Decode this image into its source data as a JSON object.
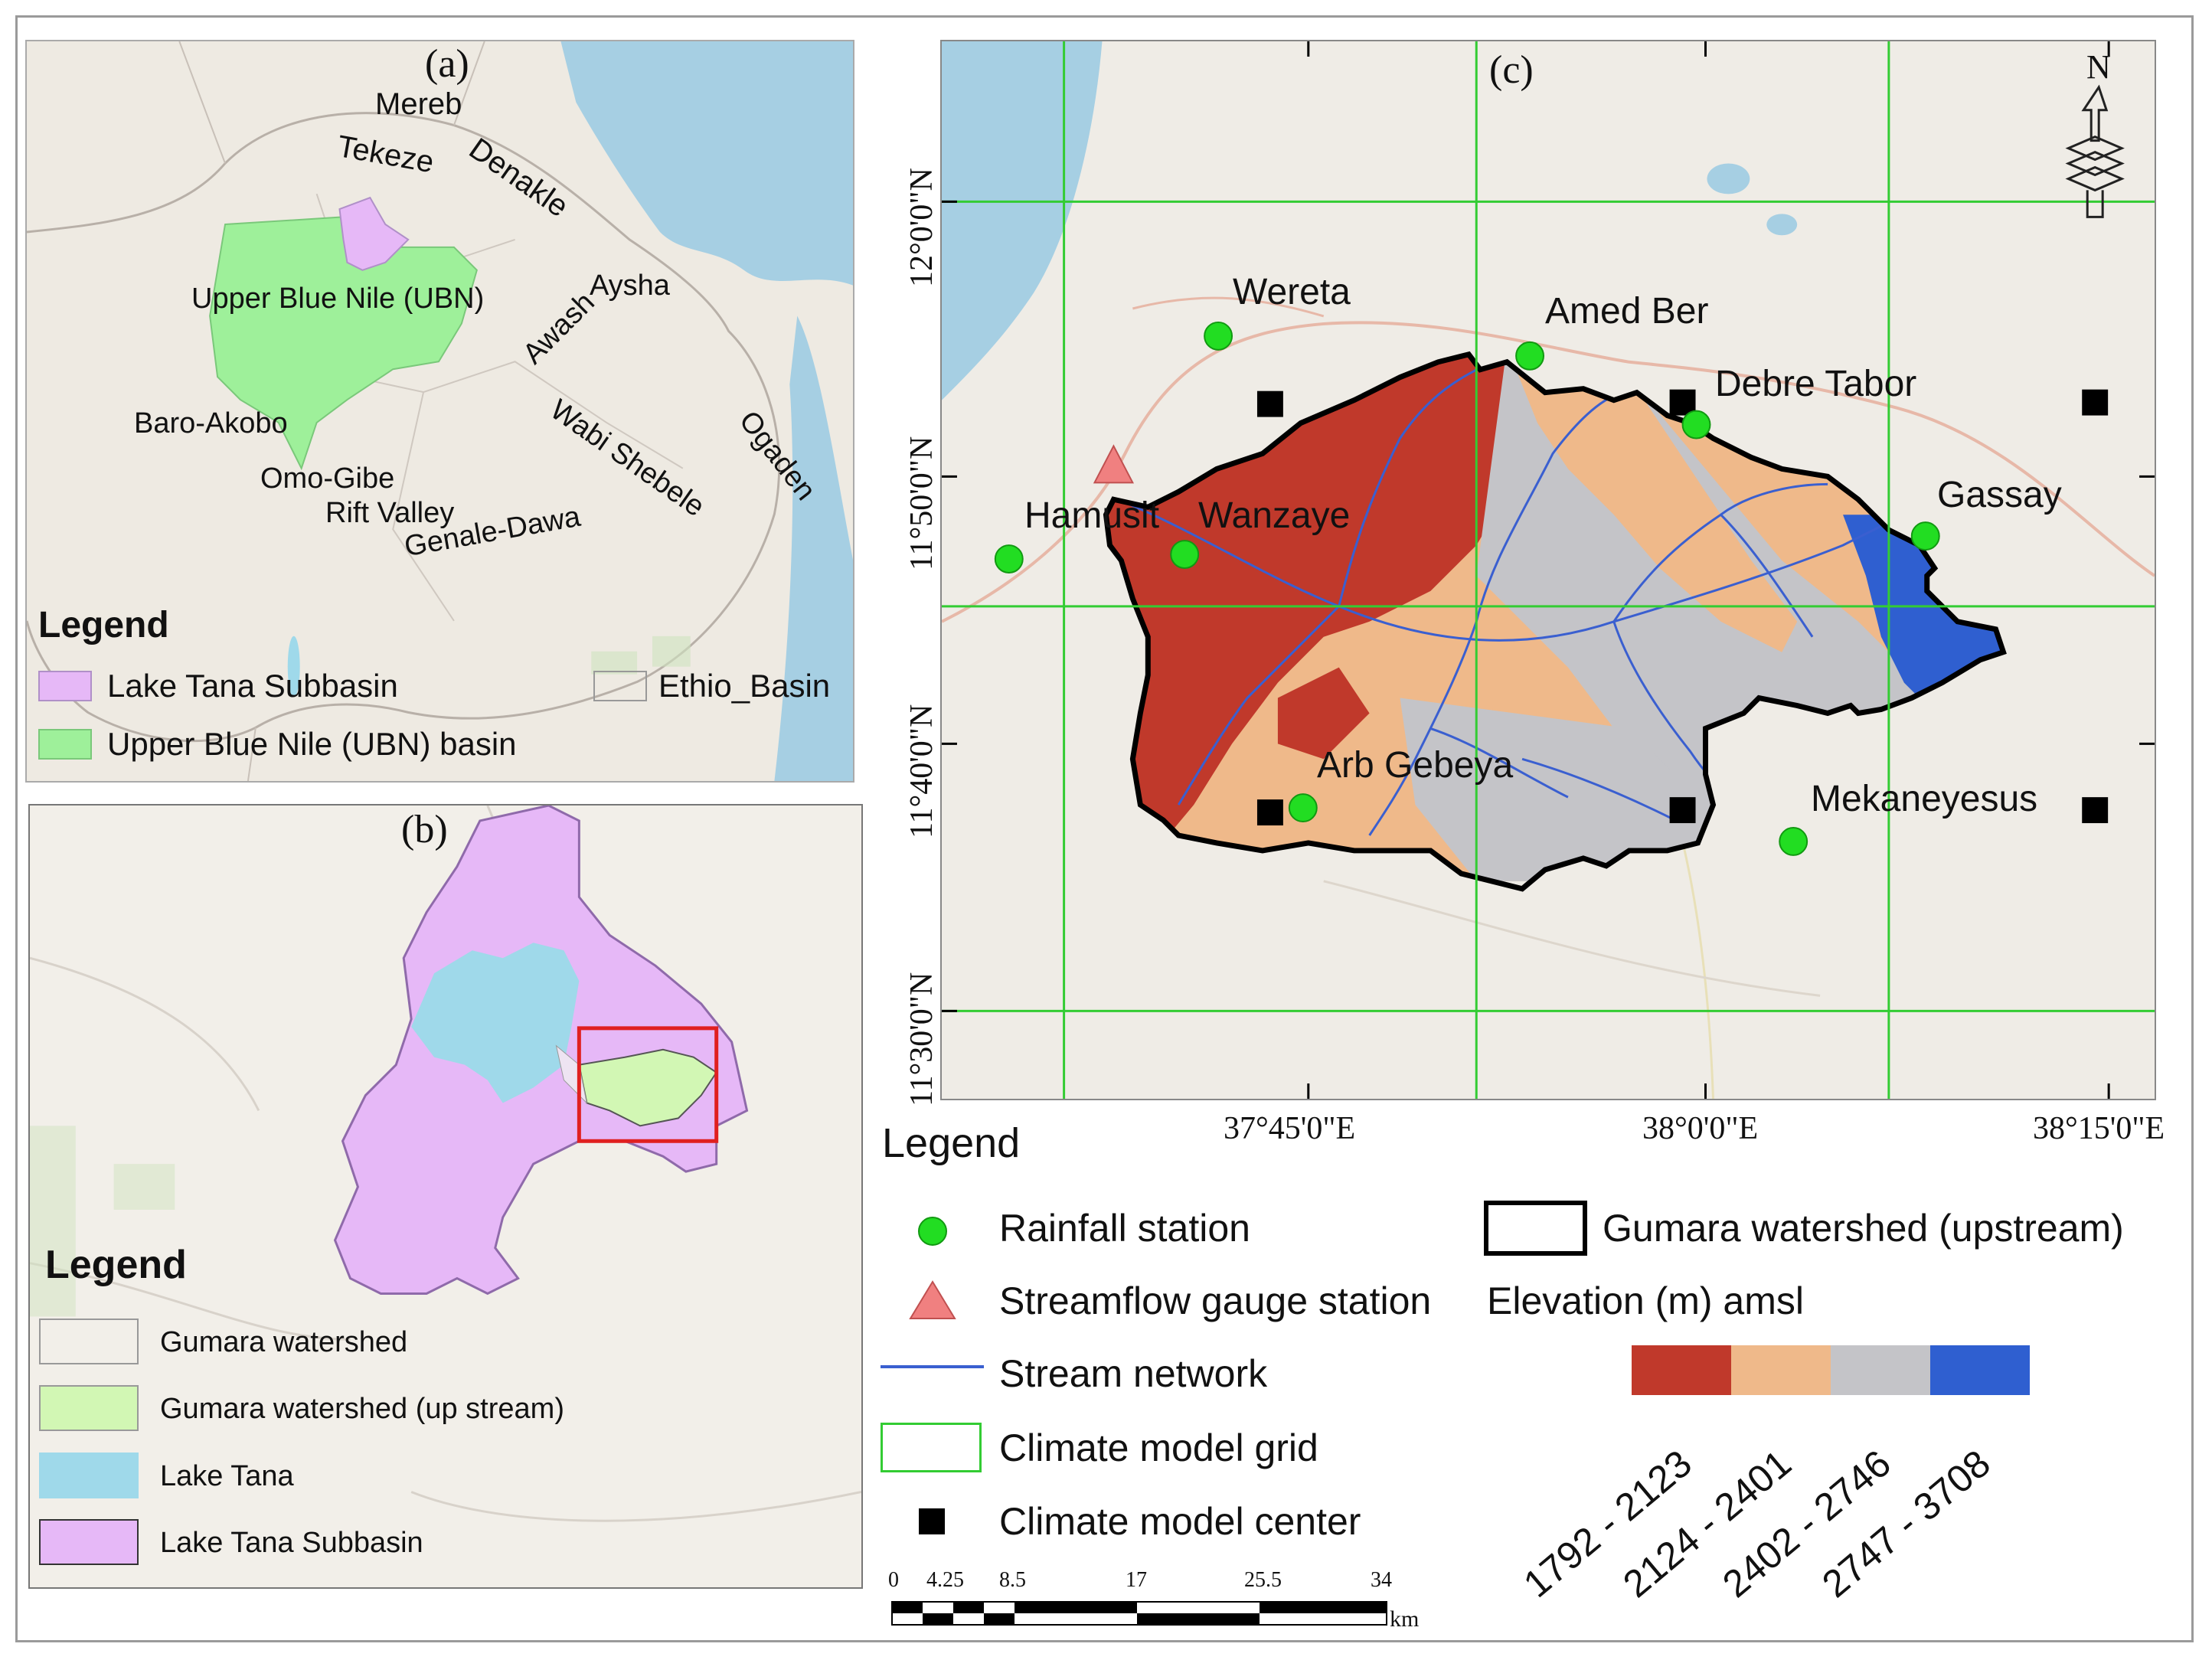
{
  "panel_a": {
    "letter": "(a)",
    "basin_labels": {
      "mereb": "Mereb",
      "tekeze": "Tekeze",
      "denakle": "Denakle",
      "ubn": "Upper Blue Nile (UBN)",
      "awash": "Awash",
      "aysha": "Aysha",
      "baro": "Baro-Akobo",
      "omo": "Omo-Gibe",
      "rift": "Rift Valley",
      "genale": "Genale-Dawa",
      "wabi": "Wabi Shebele",
      "ogaden": "Ogaden"
    },
    "legend_title": "Legend",
    "legend": {
      "tana_subbasin": "Lake Tana Subbasin",
      "ubn_basin": "Upper Blue Nile (UBN) basin",
      "ethio_basin": "Ethio_Basin"
    }
  },
  "panel_b": {
    "letter": "(b)",
    "legend_title": "Legend",
    "legend": {
      "gumara": "Gumara watershed",
      "gumara_up": "Gumara watershed (up stream)",
      "lake_tana": "Lake Tana",
      "tana_subbasin": "Lake Tana Subbasin"
    }
  },
  "panel_c": {
    "letter": "(c)",
    "north": "N",
    "stations": {
      "wereta": "Wereta",
      "amed_ber": "Amed Ber",
      "debre_tabor": "Debre Tabor",
      "gassay": "Gassay",
      "hamusit": "Hamusit",
      "wanzaye": "Wanzaye",
      "arb_gebeya": "Arb Gebeya",
      "mekaneyesus": "Mekaneyesus"
    },
    "lat_ticks": [
      "12°0'0\"N",
      "11°50'0\"N",
      "11°40'0\"N",
      "11°30'0\"N"
    ],
    "lon_ticks": [
      "37°45'0\"E",
      "38°0'0\"E",
      "38°15'0\"E"
    ],
    "legend_title": "Legend",
    "legend": {
      "rainfall": "Rainfall station",
      "gauge": "Streamflow gauge station",
      "stream": "Stream network",
      "grid": "Climate model grid",
      "center": "Climate model center",
      "watershed": "Gumara watershed (upstream)",
      "elevation_title": "Elevation (m) amsl"
    },
    "elevation_classes": [
      {
        "label": "1792 - 2123",
        "color": "#c0392b"
      },
      {
        "label": "2124 - 2401",
        "color": "#efb98a"
      },
      {
        "label": "2402 - 2746",
        "color": "#c4c4c8"
      },
      {
        "label": "2747 - 3708",
        "color": "#2f5fd0"
      }
    ],
    "scale": {
      "ticks": [
        "0",
        "4.25",
        "8.5",
        "17",
        "25.5",
        "34"
      ],
      "unit": "km"
    }
  },
  "colors": {
    "tana_subbasin": "#e6b8f7",
    "ubn": "#9ef09a",
    "gumara_up": "#d2f7b4",
    "lake": "#9fd9ea",
    "sea": "#a6cfe3",
    "rainfall": "#22dd22",
    "gauge": "#f08080",
    "grid": "#33cc33",
    "stream": "#3a5fd0"
  }
}
